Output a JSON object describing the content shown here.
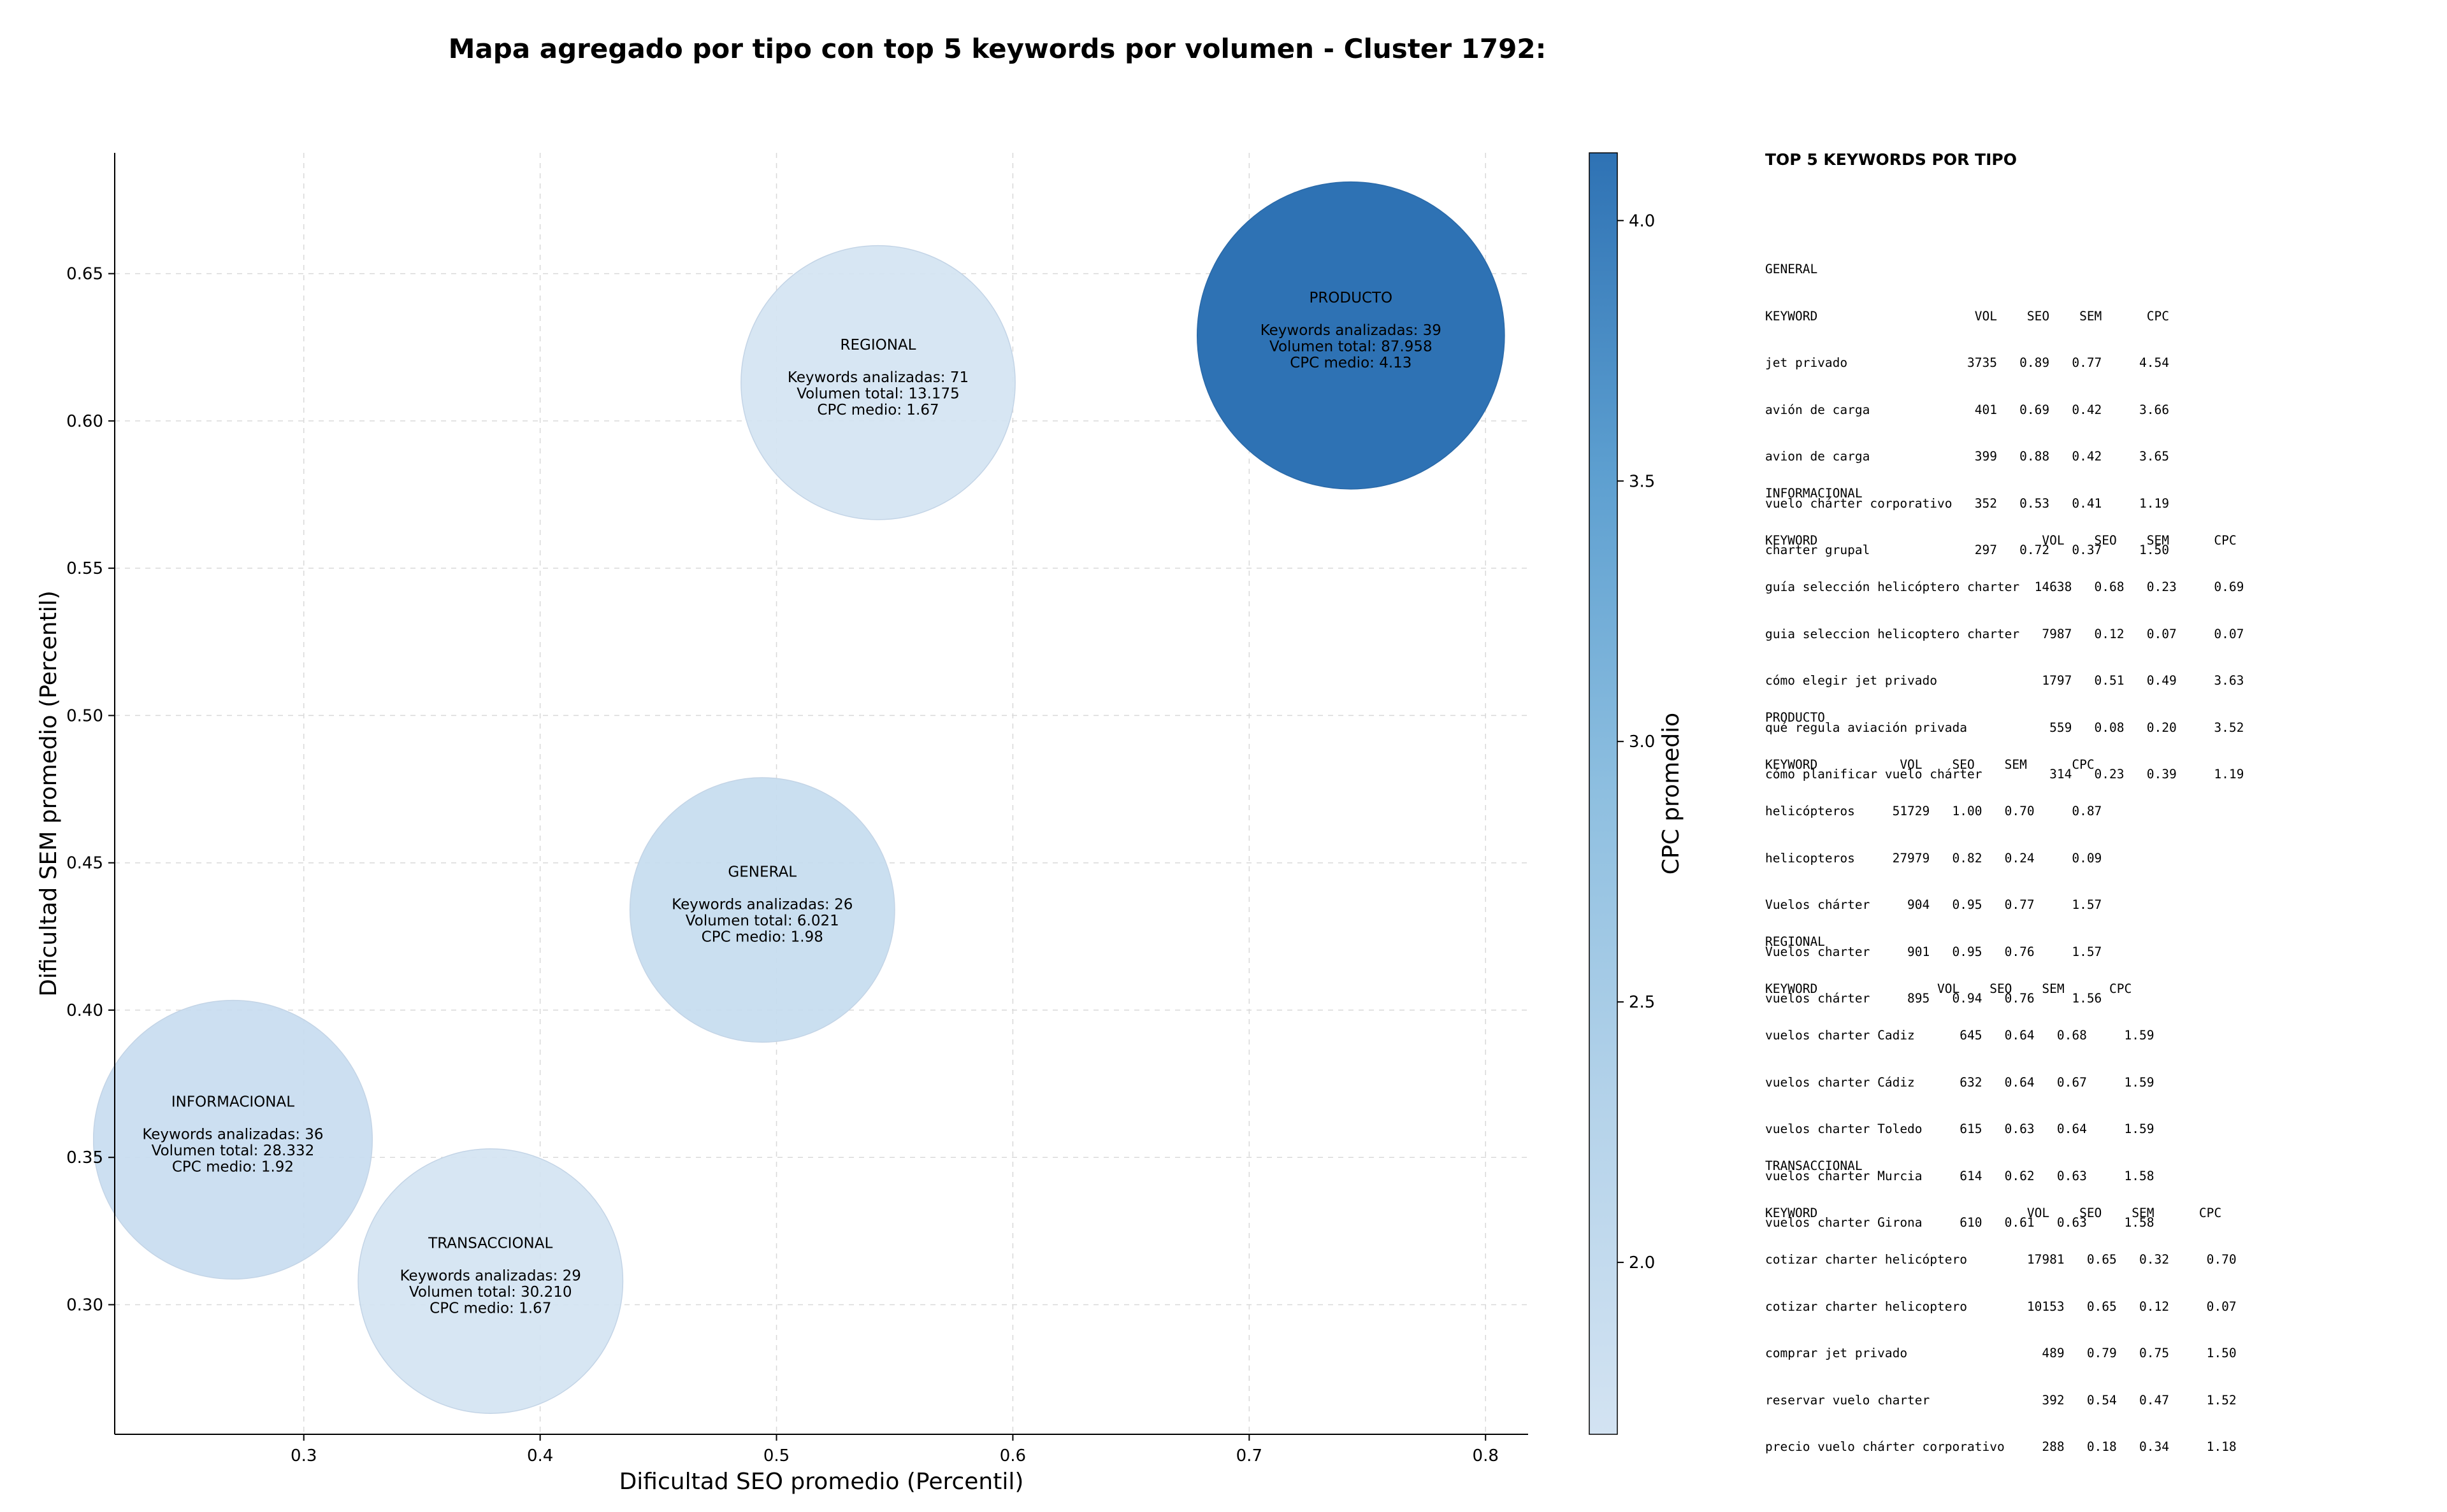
{
  "chart_data": {
    "type": "scatter",
    "title": "Mapa agregado por tipo con top 5 keywords por volumen - Cluster 1792:",
    "xlabel": "Dificultad SEO promedio (Percentil)",
    "ylabel": "Dificultad SEM promedio (Percentil)",
    "colorbar_label": "CPC promedio",
    "xlim": [
      0.22,
      0.818
    ],
    "ylim": [
      0.256,
      0.691
    ],
    "x_ticks": [
      0.3,
      0.4,
      0.5,
      0.6,
      0.7,
      0.8
    ],
    "y_ticks": [
      0.3,
      0.35,
      0.4,
      0.45,
      0.5,
      0.55,
      0.6,
      0.65
    ],
    "colorbar_range": [
      1.67,
      4.13
    ],
    "colorbar_ticks": [
      2.0,
      2.5,
      3.0,
      3.5,
      4.0
    ],
    "grid": true,
    "stat_labels": {
      "keywords": "Keywords analizadas: ",
      "volume": "Volumen total: ",
      "cpc": "CPC medio: "
    },
    "points": [
      {
        "name": "REGIONAL",
        "x": 0.543,
        "y": 0.613,
        "radius": 0.058,
        "keywords": "71",
        "volume": "13.175",
        "cpc": "1.67"
      },
      {
        "name": "PRODUCTO",
        "x": 0.743,
        "y": 0.629,
        "radius": 0.065,
        "keywords": "39",
        "volume": "87.958",
        "cpc": "4.13"
      },
      {
        "name": "GENERAL",
        "x": 0.494,
        "y": 0.434,
        "radius": 0.056,
        "keywords": "26",
        "volume": "6.021",
        "cpc": "1.98"
      },
      {
        "name": "INFORMACIONAL",
        "x": 0.27,
        "y": 0.356,
        "radius": 0.059,
        "keywords": "36",
        "volume": "28.332",
        "cpc": "1.92"
      },
      {
        "name": "TRANSACCIONAL",
        "x": 0.379,
        "y": 0.308,
        "radius": 0.056,
        "keywords": "29",
        "volume": "30.210",
        "cpc": "1.67"
      }
    ]
  },
  "keyword_panel": {
    "title": "TOP 5 KEYWORDS POR TIPO",
    "blocks": [
      {
        "type": "GENERAL",
        "header": "KEYWORD                     VOL    SEO    SEM      CPC",
        "rows": [
          "jet privado                3735   0.89   0.77     4.54",
          "avión de carga              401   0.69   0.42     3.66",
          "avion de carga              399   0.88   0.42     3.65",
          "vuelo chárter corporativo   352   0.53   0.41     1.19",
          "charter grupal              297   0.72   0.37     1.50"
        ]
      },
      {
        "type": "INFORMACIONAL",
        "header": "KEYWORD                              VOL    SEO    SEM      CPC",
        "rows": [
          "guía selección helicóptero charter  14638   0.68   0.23     0.69",
          "guia seleccion helicoptero charter   7987   0.12   0.07     0.07",
          "cómo elegir jet privado              1797   0.51   0.49     3.63",
          "qué regula aviación privada           559   0.08   0.20     3.52",
          "cómo planificar vuelo chárter         314   0.23   0.39     1.19"
        ]
      },
      {
        "type": "PRODUCTO",
        "header": "KEYWORD           VOL    SEO    SEM      CPC",
        "rows": [
          "helicópteros     51729   1.00   0.70     0.87",
          "helicopteros     27979   0.82   0.24     0.09",
          "Vuelos chárter     904   0.95   0.77     1.57",
          "Vuelos charter     901   0.95   0.76     1.57",
          "vuelos chárter     895   0.94   0.76     1.56"
        ]
      },
      {
        "type": "REGIONAL",
        "header": "KEYWORD                VOL    SEO    SEM      CPC",
        "rows": [
          "vuelos charter Cadiz      645   0.64   0.68     1.59",
          "vuelos charter Cádiz      632   0.64   0.67     1.59",
          "vuelos charter Toledo     615   0.63   0.64     1.59",
          "vuelos charter Murcia     614   0.62   0.63     1.58",
          "vuelos charter Girona     610   0.61   0.63     1.58"
        ]
      },
      {
        "type": "TRANSACCIONAL",
        "header": "KEYWORD                            VOL    SEO    SEM      CPC",
        "rows": [
          "cotizar charter helicóptero        17981   0.65   0.32     0.70",
          "cotizar charter helicoptero        10153   0.65   0.12     0.07",
          "comprar jet privado                  489   0.79   0.75     1.50",
          "reservar vuelo charter               392   0.54   0.47     1.52",
          "precio vuelo chárter corporativo     288   0.18   0.34     1.18"
        ]
      }
    ]
  }
}
